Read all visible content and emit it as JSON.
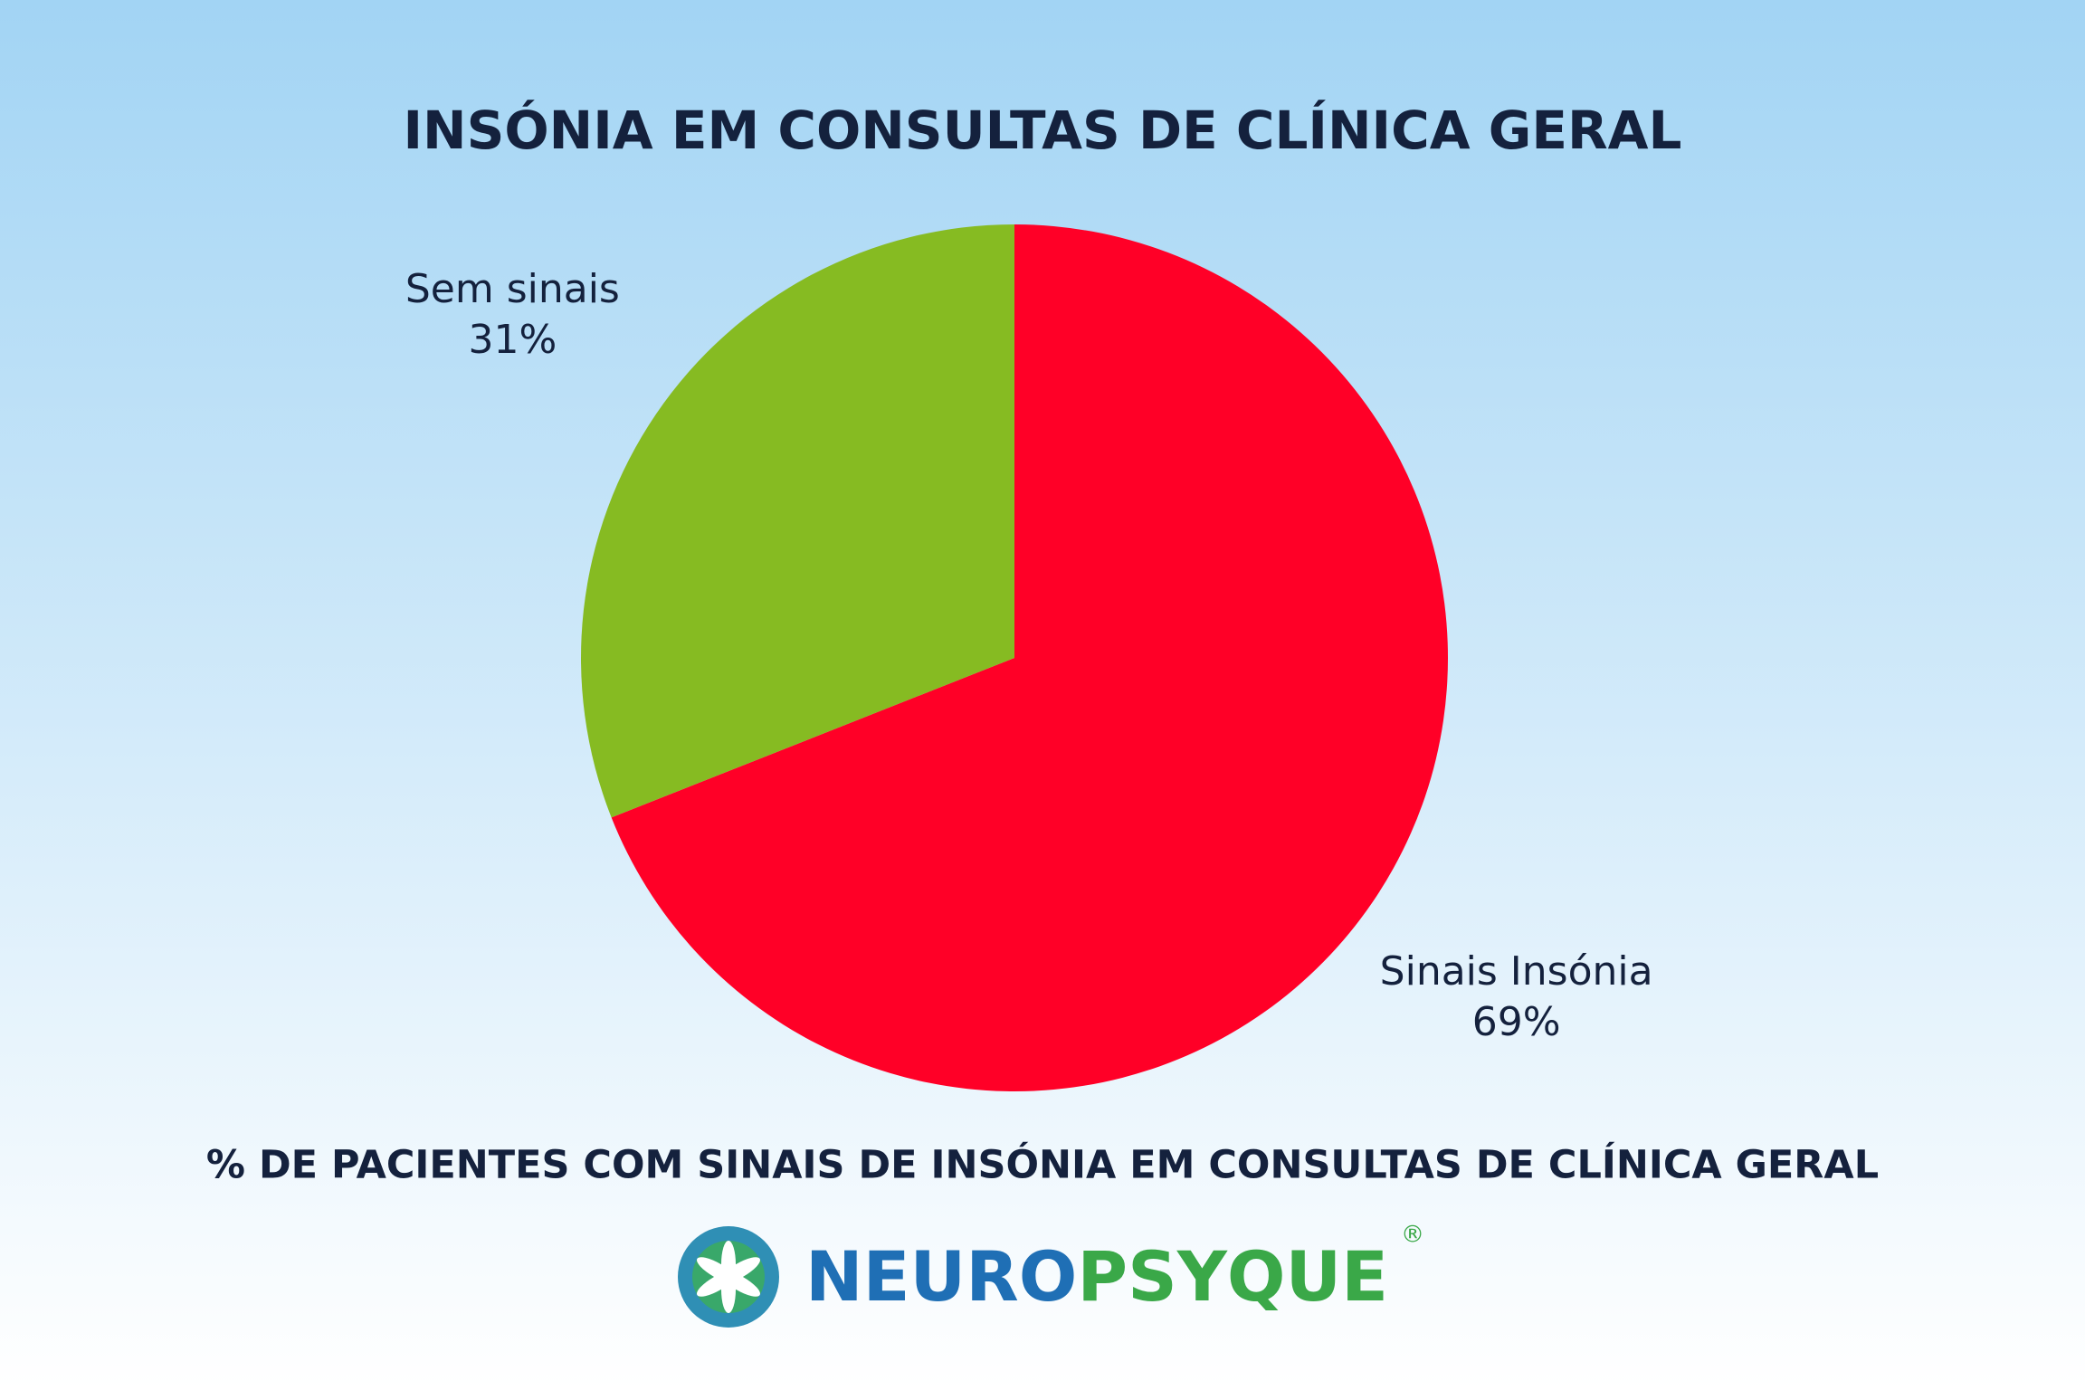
{
  "chart_data": {
    "type": "pie",
    "title": "INSÓNIA EM CONSULTAS DE CLÍNICA GERAL",
    "subtitle": "% DE PACIENTES COM SINAIS DE INSÓNIA EM CONSULTAS DE CLÍNICA GERAL",
    "categories": [
      "Sinais Insónia",
      "Sem sinais"
    ],
    "values": [
      69,
      31
    ],
    "value_labels": [
      "69%",
      "31%"
    ],
    "colors": [
      "#ff0027",
      "#86bb22"
    ]
  },
  "logo": {
    "part1": "NEURO",
    "part2": "PSYQUE",
    "mark": "®"
  }
}
